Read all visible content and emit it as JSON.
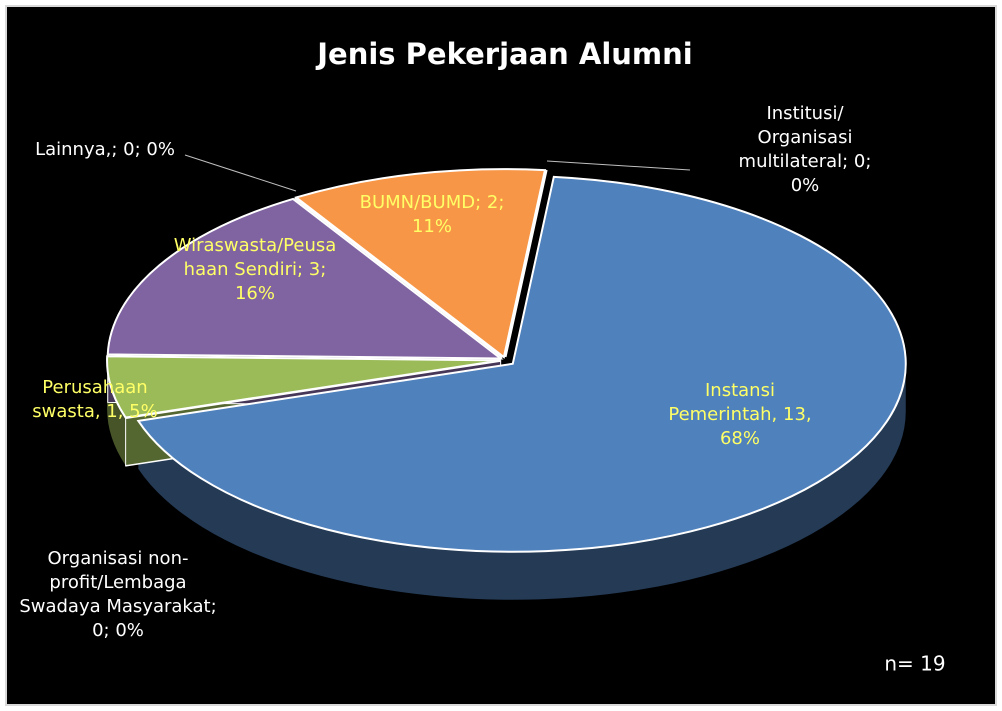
{
  "chart_data": {
    "type": "pie",
    "title": "Jenis Pekerjaan Alumni",
    "values": [
      13,
      0,
      1,
      3,
      0,
      2,
      0
    ],
    "value_labels": [
      "Instansi Pemerintah, 13, 68%",
      "Organisasi non-profit/Lembaga Swadaya Masyarakat; 0; 0%",
      "Perusahaan swasta, 1, 5%",
      "Wiraswasta/Peusahaan Sendiri; 3; 16%",
      "Lainnya,; 0; 0%",
      "BUMN/BUMD; 2; 11%",
      "Institusi/ Organisasi multilateral; 0; 0%"
    ],
    "colors": [
      "#4f81bd",
      "#632523",
      "#9bbb59",
      "#8064a2",
      "#4bacc6",
      "#f79646",
      "#31859c"
    ],
    "annotation": "n= 19"
  }
}
